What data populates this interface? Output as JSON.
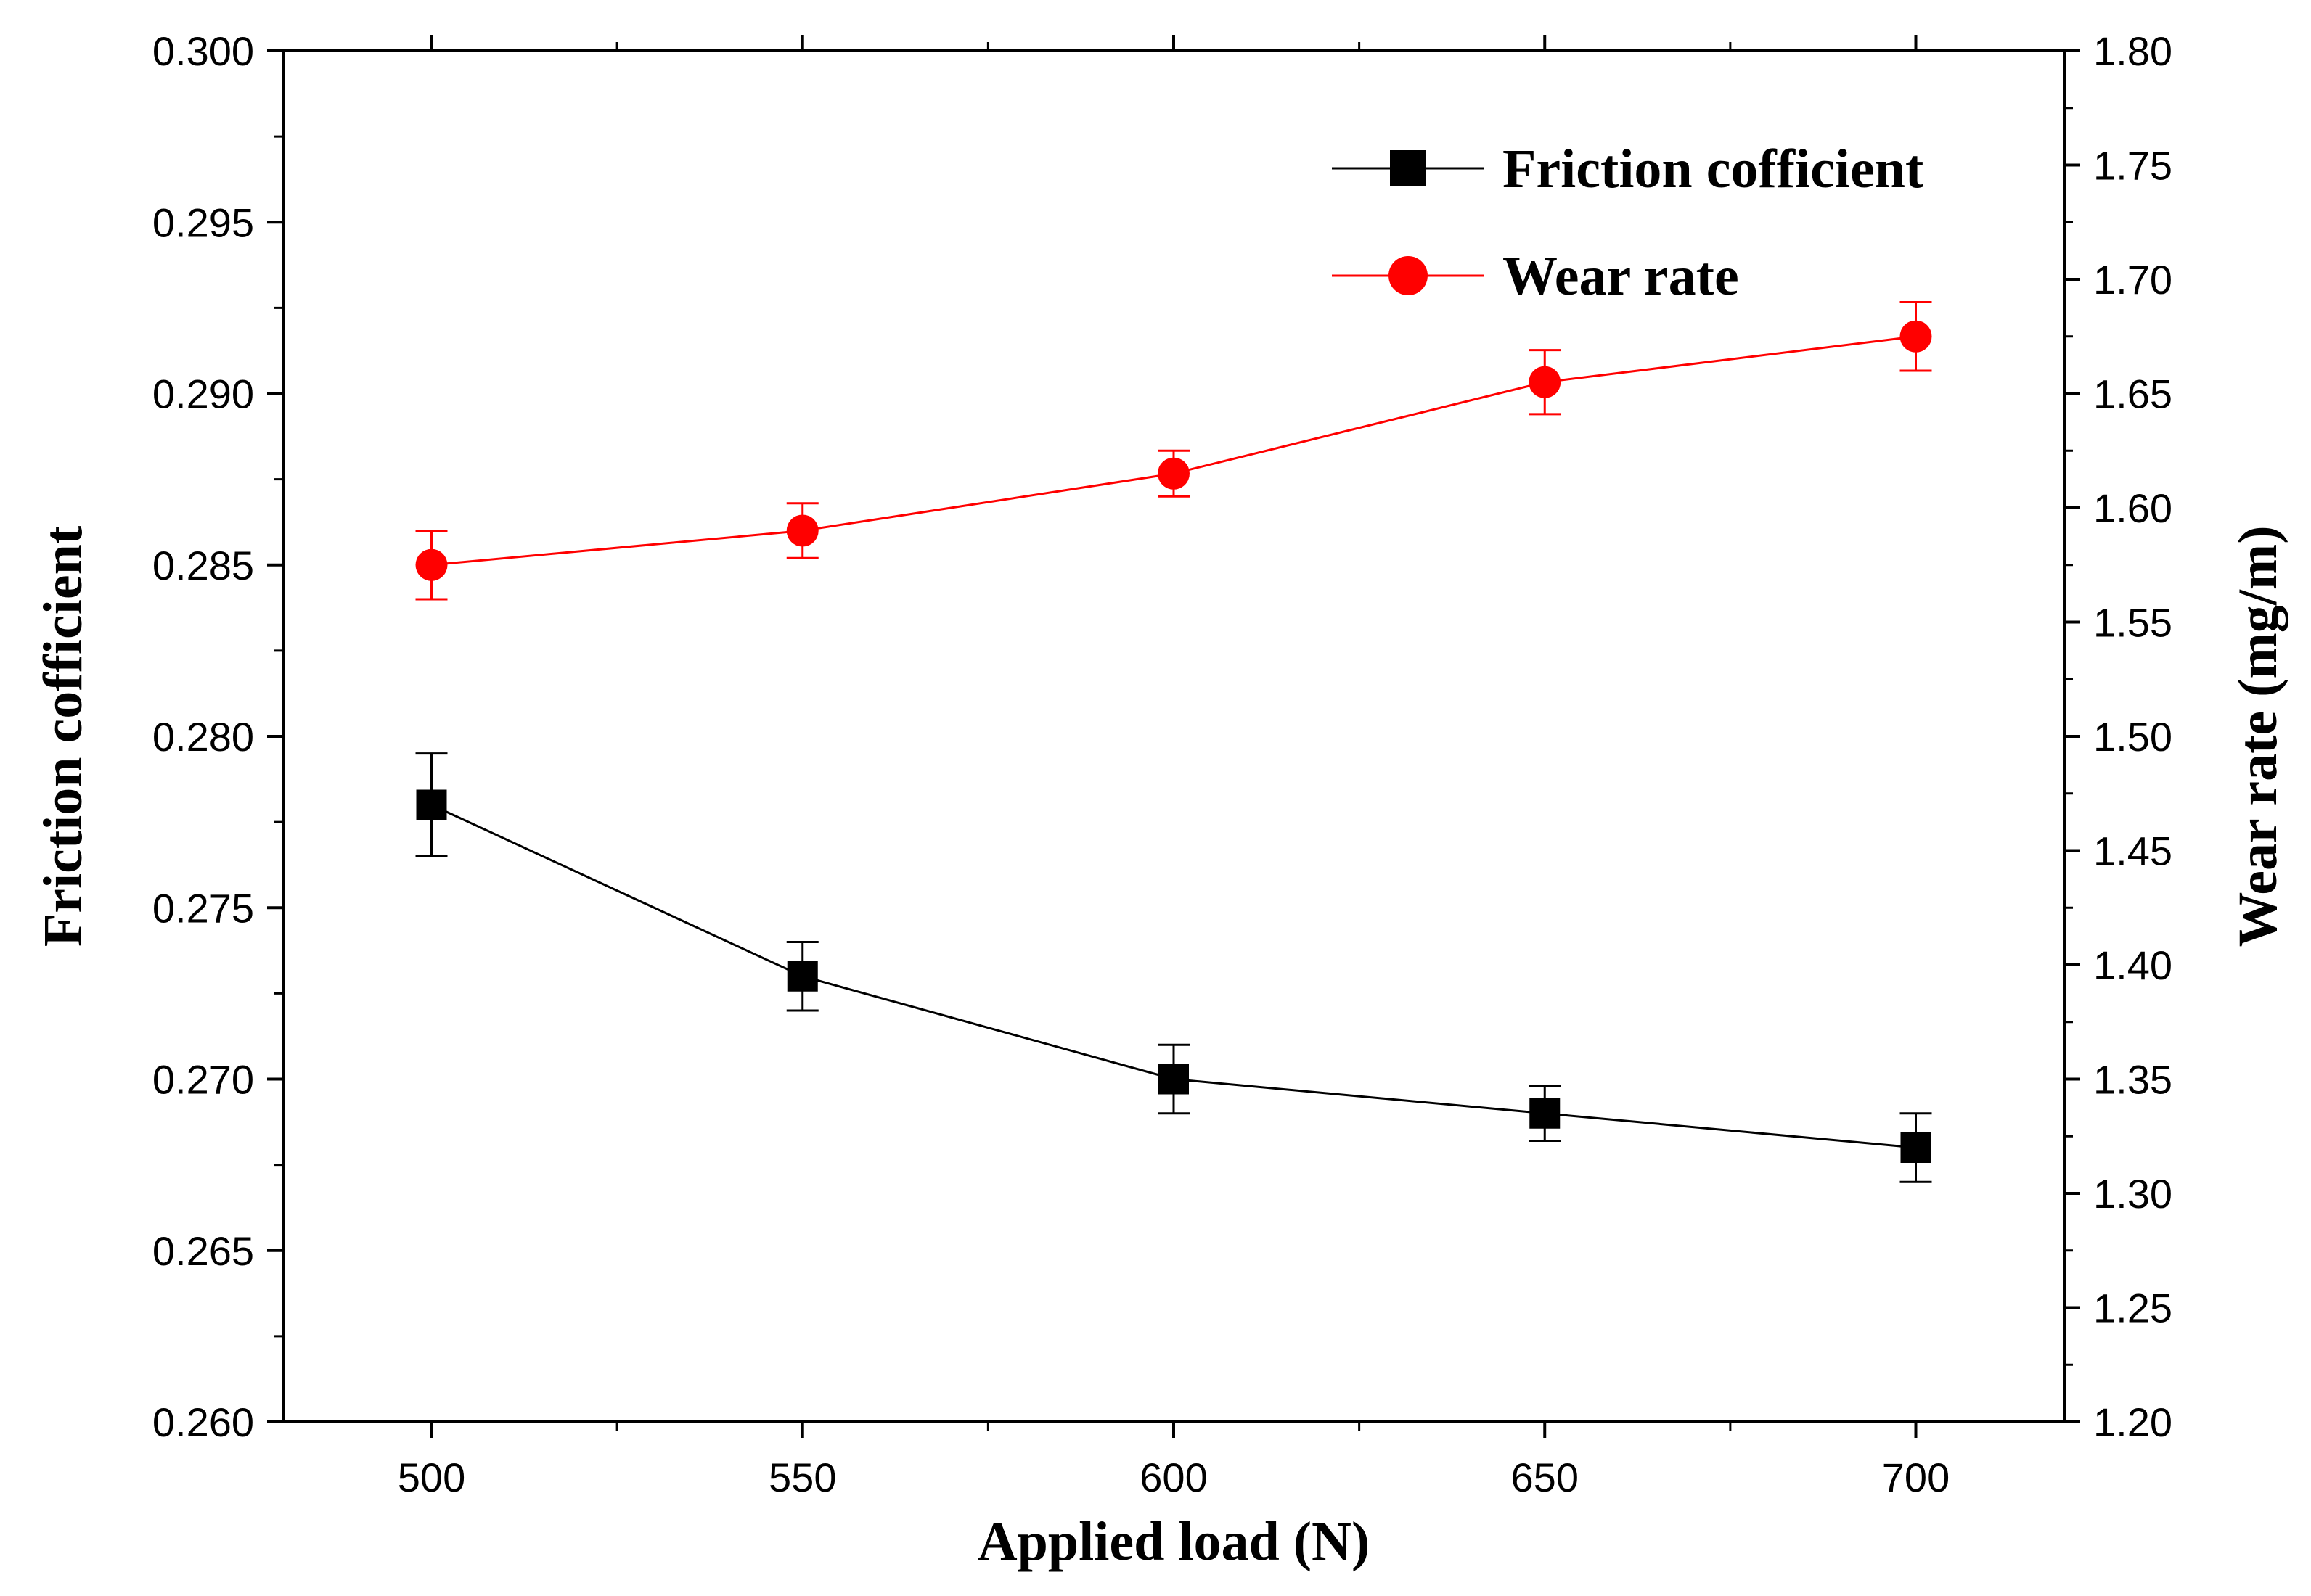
{
  "chart_data": {
    "type": "line",
    "title": "",
    "xlabel": "Applied load (N)",
    "ylabel": "Friction cofficient",
    "y2label": "Wear rate (mg/m)",
    "x": [
      500,
      550,
      600,
      650,
      700
    ],
    "xlim": [
      480,
      720
    ],
    "xticks": [
      500,
      550,
      600,
      650,
      700
    ],
    "xtick_labels": [
      "500",
      "550",
      "600",
      "650",
      "700"
    ],
    "ylim": [
      0.26,
      0.3
    ],
    "yticks": [
      0.26,
      0.265,
      0.27,
      0.275,
      0.28,
      0.285,
      0.29,
      0.295,
      0.3
    ],
    "ytick_labels": [
      "0.260",
      "0.265",
      "0.270",
      "0.275",
      "0.280",
      "0.285",
      "0.290",
      "0.295",
      "0.300"
    ],
    "y2lim": [
      1.2,
      1.8
    ],
    "y2ticks": [
      1.2,
      1.25,
      1.3,
      1.35,
      1.4,
      1.45,
      1.5,
      1.55,
      1.6,
      1.65,
      1.7,
      1.75,
      1.8
    ],
    "y2tick_labels": [
      "1.20",
      "1.25",
      "1.30",
      "1.35",
      "1.40",
      "1.45",
      "1.50",
      "1.55",
      "1.60",
      "1.65",
      "1.70",
      "1.75",
      "1.80"
    ],
    "legend_position": "top-right",
    "series": [
      {
        "name": "Friction cofficient",
        "axis": "left",
        "marker": "square",
        "color": "#000000",
        "values": [
          0.278,
          0.273,
          0.27,
          0.269,
          0.268
        ],
        "errors": [
          0.0015,
          0.001,
          0.001,
          0.0008,
          0.001
        ]
      },
      {
        "name": "Wear rate",
        "axis": "right",
        "marker": "circle",
        "color": "#ff0000",
        "values": [
          1.575,
          1.59,
          1.615,
          1.655,
          1.675
        ],
        "errors": [
          0.015,
          0.012,
          0.01,
          0.014,
          0.015
        ]
      }
    ]
  }
}
